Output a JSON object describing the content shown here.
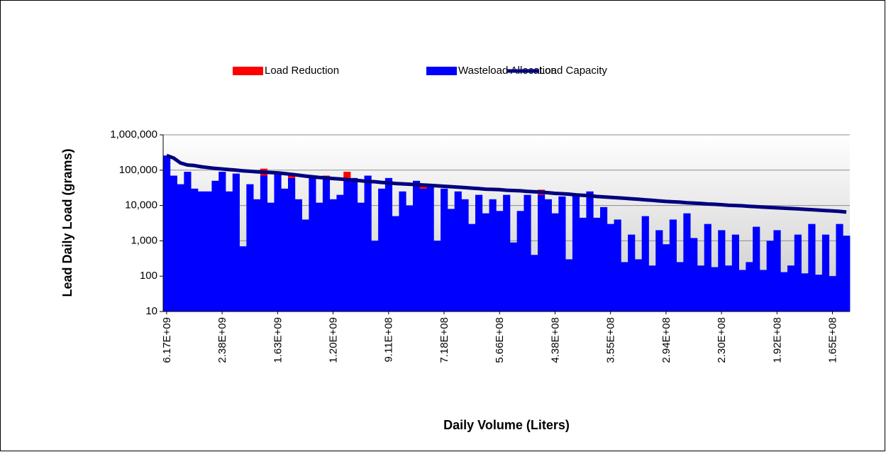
{
  "chart_data": {
    "type": "bar",
    "stacked": true,
    "log_scale": true,
    "grid": true,
    "legend": "top",
    "xlabel": "Daily Volume (Liters)",
    "ylabel": "Lead Daily Load (grams)",
    "categories": [
      "6.17E+09",
      null,
      null,
      null,
      null,
      null,
      null,
      null,
      "2.38E+09",
      null,
      null,
      null,
      null,
      null,
      null,
      null,
      "1.63E+09",
      null,
      null,
      null,
      null,
      null,
      null,
      null,
      "1.20E+09",
      null,
      null,
      null,
      null,
      null,
      null,
      null,
      "9.11E+08",
      null,
      null,
      null,
      null,
      null,
      null,
      null,
      "7.18E+08",
      null,
      null,
      null,
      null,
      null,
      null,
      null,
      "5.66E+08",
      null,
      null,
      null,
      null,
      null,
      null,
      null,
      "4.38E+08",
      null,
      null,
      null,
      null,
      null,
      null,
      null,
      "3.55E+08",
      null,
      null,
      null,
      null,
      null,
      null,
      null,
      "2.94E+08",
      null,
      null,
      null,
      null,
      null,
      null,
      null,
      "2.30E+08",
      null,
      null,
      null,
      null,
      null,
      null,
      null,
      "1.92E+08",
      null,
      null,
      null,
      null,
      null,
      null,
      null,
      "1.65E+08",
      null,
      null
    ],
    "ylim": [
      10,
      1000000
    ],
    "yticks": [
      10,
      100,
      {
        "value": 1000,
        "label": "1,000"
      },
      {
        "value": 10000,
        "label": "10,000"
      },
      {
        "value": 100000,
        "label": "100,000"
      },
      {
        "value": 1000000,
        "label": "1,000,000"
      }
    ],
    "series": [
      {
        "name": "Load Reduction",
        "type": "bar",
        "color": "#ff0000",
        "values": [
          0,
          0,
          0,
          0,
          0,
          0,
          0,
          0,
          0,
          0,
          0,
          0,
          0,
          0,
          40000,
          0,
          0,
          0,
          10000,
          0,
          0,
          0,
          0,
          15000,
          0,
          0,
          30000,
          0,
          0,
          0,
          0,
          0,
          0,
          0,
          0,
          0,
          0,
          5000,
          0,
          0,
          0,
          0,
          0,
          0,
          0,
          0,
          0,
          0,
          0,
          0,
          0,
          0,
          0,
          0,
          8000,
          0,
          0,
          0,
          0,
          0,
          0,
          0,
          0,
          0,
          0,
          0,
          0,
          0,
          0,
          0,
          0,
          0,
          0,
          0,
          0,
          0,
          0,
          0,
          0,
          0,
          0,
          0,
          0,
          0,
          0,
          0,
          0,
          0,
          0,
          0,
          0,
          0,
          0,
          0,
          0,
          0,
          0,
          0,
          0
        ]
      },
      {
        "name": "Wasteload Allocation",
        "type": "bar",
        "color": "#0000ff",
        "values": [
          260000,
          70000,
          40000,
          90000,
          30000,
          25000,
          25000,
          50000,
          90000,
          25000,
          80000,
          700,
          40000,
          15000,
          70000,
          12000,
          80000,
          30000,
          60000,
          15000,
          4000,
          60000,
          12000,
          55000,
          15000,
          20000,
          60000,
          60000,
          12000,
          70000,
          1000,
          30000,
          60000,
          5000,
          25000,
          10000,
          50000,
          30000,
          35000,
          1000,
          30000,
          8000,
          25000,
          15000,
          3000,
          20000,
          6000,
          15000,
          7000,
          20000,
          900,
          7000,
          20000,
          400,
          20000,
          15000,
          6000,
          18000,
          300,
          20000,
          4500,
          25000,
          4500,
          9000,
          3000,
          4000,
          250,
          1500,
          300,
          5000,
          200,
          2000,
          800,
          4000,
          250,
          6000,
          1200,
          200,
          3000,
          180,
          2000,
          200,
          1500,
          150,
          250,
          2500,
          150,
          1000,
          2000,
          130,
          200,
          1500,
          120,
          3000,
          110,
          1500,
          100,
          3000,
          1400
        ]
      },
      {
        "name": "Load Capacity",
        "type": "line",
        "color": "#000080",
        "values": [
          260000,
          220000,
          160000,
          140000,
          135000,
          125000,
          118000,
          112000,
          108000,
          104000,
          100000,
          96000,
          93000,
          90000,
          88000,
          86000,
          84000,
          80000,
          76000,
          72000,
          68000,
          65000,
          62000,
          60000,
          58000,
          56000,
          54000,
          52000,
          50000,
          48000,
          47000,
          45000,
          44000,
          42000,
          41000,
          40000,
          39000,
          38000,
          37000,
          36000,
          35000,
          34000,
          33000,
          32000,
          31000,
          30000,
          29000,
          28500,
          28000,
          27000,
          26500,
          26000,
          25000,
          24500,
          24000,
          23000,
          22000,
          21500,
          21000,
          20000,
          19500,
          19000,
          18000,
          17500,
          17000,
          16500,
          16000,
          15500,
          15000,
          14500,
          14000,
          13500,
          13000,
          12700,
          12400,
          12000,
          11700,
          11400,
          11000,
          10800,
          10500,
          10200,
          10000,
          9800,
          9500,
          9300,
          9000,
          8800,
          8600,
          8400,
          8200,
          8000,
          7800,
          7600,
          7400,
          7200,
          7000,
          6800,
          6500
        ]
      }
    ]
  }
}
